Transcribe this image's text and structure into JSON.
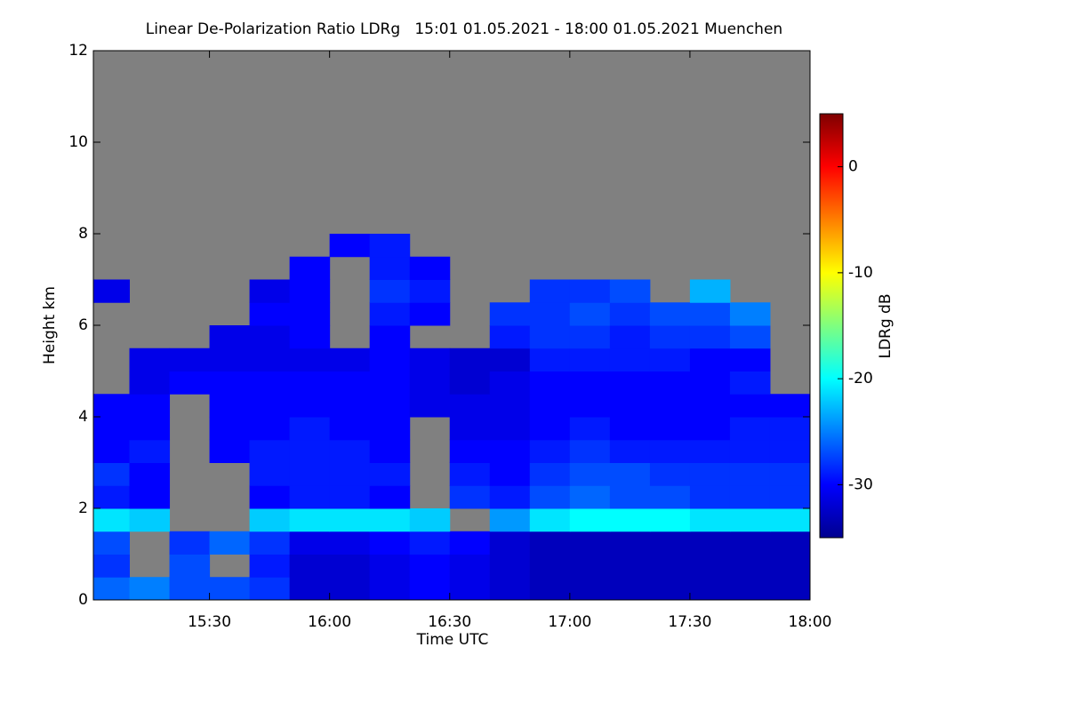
{
  "chart_data": {
    "type": "heatmap",
    "title": "Linear De-Polarization Ratio LDRg   15:01 01.05.2021 - 18:00 01.05.2021 Muenchen",
    "x_label": "Time UTC",
    "y_label": "Height km",
    "colorbar_label": "LDRg dB",
    "xlim": [
      15.0167,
      18.0
    ],
    "xticks": [
      {
        "value": 15.5,
        "label": "15:30"
      },
      {
        "value": 16.0,
        "label": "16:00"
      },
      {
        "value": 16.5,
        "label": "16:30"
      },
      {
        "value": 17.0,
        "label": "17:00"
      },
      {
        "value": 17.5,
        "label": "17:30"
      },
      {
        "value": 18.0,
        "label": "18:00"
      }
    ],
    "ylim": [
      0,
      12
    ],
    "yticks": [
      0,
      2,
      4,
      6,
      8,
      10,
      12
    ],
    "zlim": [
      -35,
      5
    ],
    "zticks": [
      -30,
      -20,
      -10,
      0
    ],
    "colormap": [
      "#00008f",
      "#0000ff",
      "#007fff",
      "#00ffff",
      "#7fff7f",
      "#ffff00",
      "#ff7f00",
      "#ff0000",
      "#7f0000"
    ],
    "nodata_color": "#808080",
    "x": [
      15.0833,
      15.25,
      15.4167,
      15.5833,
      15.75,
      15.9167,
      16.0833,
      16.25,
      16.4167,
      16.5833,
      16.75,
      16.9167,
      17.0833,
      17.25,
      17.4167,
      17.5833,
      17.75,
      17.9167
    ],
    "y": [
      0.25,
      0.75,
      1.25,
      1.75,
      2.25,
      2.75,
      3.25,
      3.75,
      4.25,
      4.75,
      5.25,
      5.75,
      6.25,
      6.75,
      7.25,
      7.75
    ],
    "z": [
      [
        -26,
        -25,
        -27,
        -27,
        -28,
        -32,
        -32,
        -31,
        -30,
        -31,
        -32,
        -33,
        -33,
        -33,
        -33,
        -33,
        -33,
        -33
      ],
      [
        -28,
        null,
        -27,
        null,
        -29,
        -32,
        -32,
        -31,
        -30,
        -31,
        -32,
        -33,
        -33,
        -33,
        -33,
        -33,
        -33,
        -33
      ],
      [
        -27,
        null,
        -28,
        -26,
        -28,
        -31,
        -31,
        -30,
        -29,
        -30,
        -32,
        -33,
        -33,
        -33,
        -33,
        -33,
        -33,
        -33
      ],
      [
        -21,
        -22,
        null,
        null,
        -22,
        -21,
        -21,
        -21,
        -22,
        null,
        -24,
        -21,
        -20,
        -20,
        -20,
        -21,
        -21,
        -21
      ],
      [
        -29,
        -30,
        null,
        null,
        -30,
        -29,
        -29,
        -30,
        null,
        -28,
        -29,
        -27,
        -26,
        -27,
        -27,
        -28,
        -28,
        -28
      ],
      [
        -28,
        -30,
        null,
        null,
        -29,
        -29,
        -29,
        -29,
        null,
        -29,
        -30,
        -28,
        -27,
        -27,
        -28,
        -28,
        -28,
        -28
      ],
      [
        -30,
        -29,
        null,
        -30,
        -29,
        -29,
        -29,
        -30,
        null,
        -30,
        -30,
        -29,
        -28,
        -29,
        -29,
        -29,
        -29,
        -29
      ],
      [
        -30,
        -30,
        null,
        -30,
        -30,
        -29,
        -30,
        -30,
        null,
        -31,
        -31,
        -30,
        -29,
        -30,
        -30,
        -30,
        -29,
        -29
      ],
      [
        -30,
        -30,
        null,
        -30,
        -30,
        -30,
        -30,
        -30,
        -31,
        -31,
        -31,
        -30,
        -30,
        -30,
        -30,
        -30,
        -30,
        -30
      ],
      [
        null,
        -31,
        -30,
        -30,
        -30,
        -30,
        -30,
        -30,
        -31,
        -32,
        -31,
        -30,
        -30,
        -30,
        -30,
        -30,
        -29,
        null
      ],
      [
        null,
        -31,
        -31,
        -31,
        -31,
        -31,
        -31,
        -30,
        -31,
        -32,
        -32,
        -29,
        -29,
        -29,
        -29,
        -30,
        -30,
        null
      ],
      [
        null,
        null,
        null,
        -31,
        -31,
        -30,
        null,
        -30,
        null,
        null,
        -29,
        -28,
        -28,
        -29,
        -28,
        -28,
        -27,
        null
      ],
      [
        null,
        null,
        null,
        null,
        -30,
        -30,
        null,
        -29,
        -30,
        null,
        -28,
        -28,
        -27,
        -28,
        -27,
        -27,
        -25,
        null
      ],
      [
        -31,
        null,
        null,
        null,
        -31,
        -30,
        null,
        -28,
        -29,
        null,
        null,
        -28,
        -28,
        -27,
        null,
        -23,
        null,
        null
      ],
      [
        null,
        null,
        null,
        null,
        null,
        -30,
        null,
        -29,
        -30,
        null,
        null,
        null,
        null,
        null,
        null,
        null,
        null,
        null
      ],
      [
        null,
        null,
        null,
        null,
        null,
        null,
        -30,
        -29,
        null,
        null,
        null,
        null,
        null,
        null,
        null,
        null,
        null,
        null
      ]
    ]
  }
}
